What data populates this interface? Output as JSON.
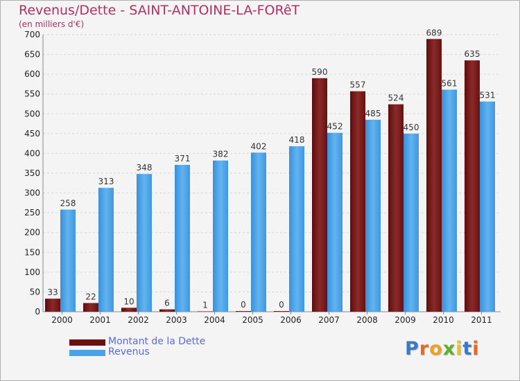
{
  "header": {
    "title": "Revenus/Dette - SAINT-ANTOINE-LA-FORêT",
    "subtitle": "(en milliers d'€)"
  },
  "chart_data": {
    "type": "bar",
    "title": "Revenus/Dette - SAINT-ANTOINE-LA-FORêT",
    "subtitle": "(en milliers d'€)",
    "xlabel": "",
    "ylabel": "",
    "categories": [
      "2000",
      "2001",
      "2002",
      "2003",
      "2004",
      "2005",
      "2006",
      "2007",
      "2008",
      "2009",
      "2010",
      "2011"
    ],
    "series": [
      {
        "name": "Montant de la Dette",
        "color": "#7a1a1a",
        "values": [
          33,
          22,
          10,
          6,
          1,
          0,
          0,
          590,
          557,
          524,
          689,
          635
        ]
      },
      {
        "name": "Revenus",
        "color": "#4aa3e8",
        "values": [
          258,
          313,
          348,
          371,
          382,
          402,
          418,
          452,
          485,
          450,
          561,
          531
        ]
      }
    ],
    "ylim": [
      0,
      700
    ],
    "yticks": [
      0,
      50,
      100,
      150,
      200,
      250,
      300,
      350,
      400,
      450,
      500,
      550,
      600,
      650,
      700
    ],
    "grid": true,
    "legend_position": "bottom-left"
  },
  "legend": {
    "items": [
      {
        "label": "Montant de la Dette",
        "color": "#6b0f0f"
      },
      {
        "label": "Revenus",
        "color": "#4aa3e8"
      }
    ]
  },
  "logo": {
    "letters": [
      {
        "ch": "P",
        "color": "#3a78c8"
      },
      {
        "ch": "r",
        "color": "#e86a1a"
      },
      {
        "ch": "o",
        "color": "#f0a020"
      },
      {
        "ch": "x",
        "color": "#60b030"
      },
      {
        "ch": "i",
        "color": "#e8c020"
      },
      {
        "ch": "t",
        "color": "#3a78c8"
      },
      {
        "ch": "i",
        "color": "#e86a1a"
      }
    ]
  }
}
